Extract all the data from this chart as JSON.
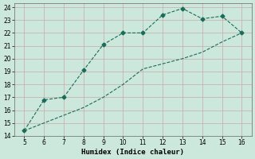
{
  "title": "",
  "xlabel": "Humidex (Indice chaleur)",
  "ylabel": "",
  "xlim": [
    4.5,
    16.5
  ],
  "ylim": [
    14,
    24.3
  ],
  "xticks": [
    5,
    6,
    7,
    8,
    9,
    10,
    11,
    12,
    13,
    14,
    15,
    16
  ],
  "yticks": [
    14,
    15,
    16,
    17,
    18,
    19,
    20,
    21,
    22,
    23,
    24
  ],
  "line1_x": [
    5,
    6,
    7,
    8,
    9,
    10,
    11,
    12,
    13,
    14,
    15,
    16
  ],
  "line1_y": [
    14.4,
    16.8,
    17.0,
    19.1,
    21.1,
    22.0,
    22.0,
    23.4,
    23.9,
    23.1,
    23.3,
    22.0
  ],
  "line2_x": [
    5,
    6,
    7,
    8,
    9,
    10,
    11,
    12,
    13,
    14,
    15,
    16
  ],
  "line2_y": [
    14.4,
    15.0,
    15.6,
    16.2,
    17.0,
    18.0,
    19.2,
    19.6,
    20.0,
    20.5,
    21.3,
    22.0
  ],
  "line_color": "#1a6b5a",
  "bg_color": "#cce8dd",
  "grid_color_major": "#c8a8a8",
  "grid_color_minor": "#c8a8a8",
  "tick_fontsize": 5.5,
  "label_fontsize": 6.5,
  "marker": "D",
  "marker_size": 2.5,
  "line_width": 0.8,
  "line_style": "--"
}
